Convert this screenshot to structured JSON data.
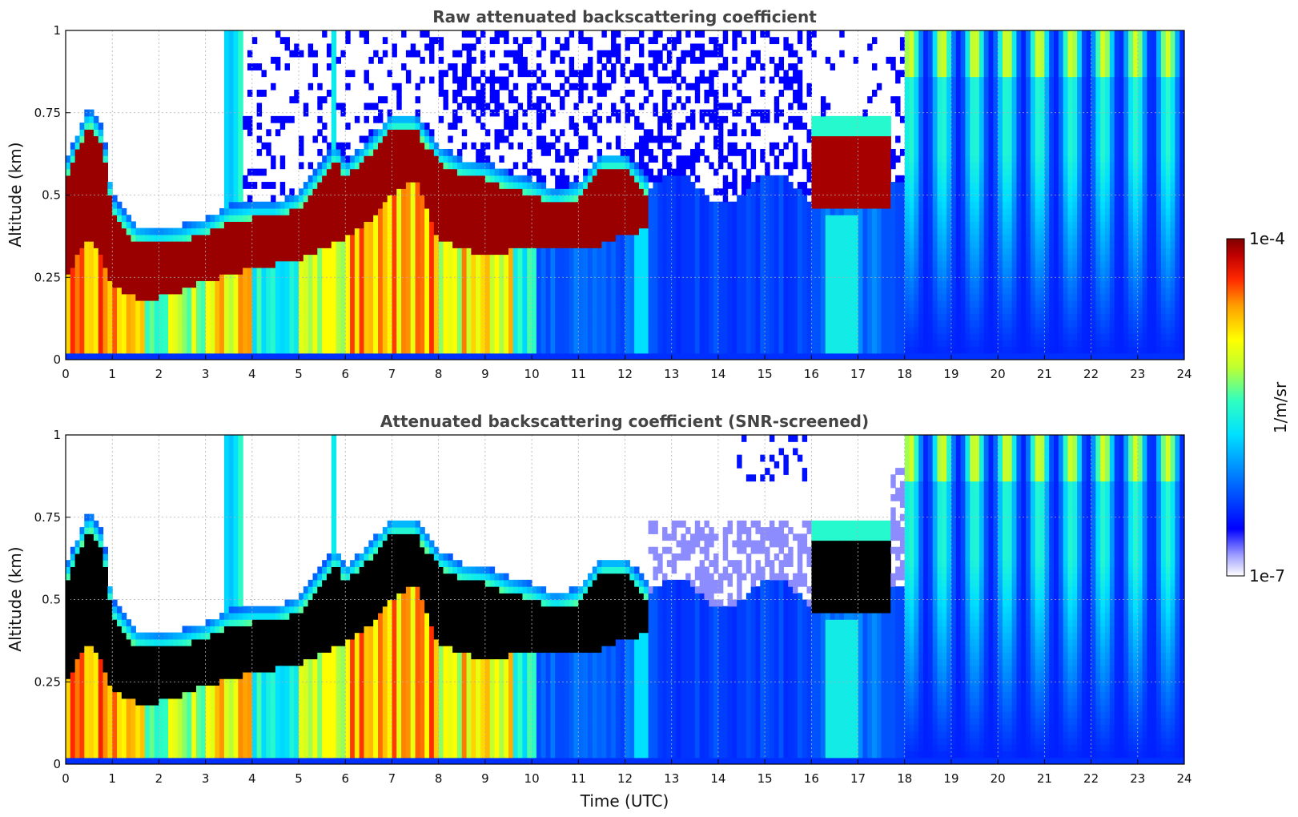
{
  "chart_data": [
    {
      "type": "heatmap",
      "title": "Raw attenuated backscattering coefficient",
      "xlabel": "",
      "ylabel": "Altitude (km)",
      "xlim": [
        0,
        24
      ],
      "ylim": [
        0,
        1
      ],
      "x_ticks": [
        "0",
        "1",
        "2",
        "3",
        "4",
        "5",
        "6",
        "7",
        "8",
        "9",
        "10",
        "11",
        "12",
        "13",
        "14",
        "15",
        "16",
        "17",
        "18",
        "19",
        "20",
        "21",
        "22",
        "23",
        "24"
      ],
      "y_ticks": [
        "0",
        "0.25",
        "0.5",
        "0.75",
        "1"
      ],
      "grid": true,
      "colormap": "jet",
      "layer_top_km": [
        [
          0.0,
          0.55
        ],
        [
          0.5,
          0.72
        ],
        [
          0.8,
          0.65
        ],
        [
          1.0,
          0.45
        ],
        [
          1.5,
          0.36
        ],
        [
          2.0,
          0.35
        ],
        [
          2.5,
          0.36
        ],
        [
          3.0,
          0.38
        ],
        [
          3.5,
          0.42
        ],
        [
          4.0,
          0.43
        ],
        [
          4.5,
          0.43
        ],
        [
          5.0,
          0.46
        ],
        [
          5.5,
          0.55
        ],
        [
          5.8,
          0.61
        ],
        [
          6.0,
          0.55
        ],
        [
          6.5,
          0.62
        ],
        [
          7.0,
          0.7
        ],
        [
          7.5,
          0.7
        ],
        [
          8.0,
          0.6
        ],
        [
          8.5,
          0.56
        ],
        [
          9.0,
          0.55
        ],
        [
          9.5,
          0.52
        ],
        [
          10.0,
          0.5
        ],
        [
          10.5,
          0.47
        ],
        [
          11.0,
          0.49
        ],
        [
          11.5,
          0.58
        ],
        [
          12.0,
          0.58
        ],
        [
          12.5,
          0.5
        ]
      ],
      "layer_bottom_km": [
        [
          0.0,
          0.25
        ],
        [
          0.5,
          0.38
        ],
        [
          0.8,
          0.3
        ],
        [
          1.0,
          0.22
        ],
        [
          1.5,
          0.19
        ],
        [
          2.0,
          0.19
        ],
        [
          2.5,
          0.21
        ],
        [
          3.0,
          0.24
        ],
        [
          3.5,
          0.26
        ],
        [
          4.0,
          0.28
        ],
        [
          4.5,
          0.29
        ],
        [
          5.0,
          0.3
        ],
        [
          5.5,
          0.34
        ],
        [
          6.0,
          0.37
        ],
        [
          6.5,
          0.42
        ],
        [
          7.0,
          0.5
        ],
        [
          7.5,
          0.55
        ],
        [
          8.0,
          0.37
        ],
        [
          8.5,
          0.34
        ],
        [
          9.0,
          0.31
        ],
        [
          9.5,
          0.33
        ],
        [
          10.0,
          0.35
        ],
        [
          10.5,
          0.33
        ],
        [
          11.0,
          0.34
        ],
        [
          11.5,
          0.35
        ],
        [
          12.0,
          0.38
        ],
        [
          12.5,
          0.4
        ]
      ],
      "second_layer": {
        "x_start": 16.0,
        "x_end": 17.7,
        "top_km": 0.68,
        "bottom_km": 0.47
      }
    },
    {
      "type": "heatmap",
      "title": "Attenuated backscattering coefficient (SNR-screened)",
      "xlabel": "Time (UTC)",
      "ylabel": "Altitude (km)",
      "xlim": [
        0,
        24
      ],
      "ylim": [
        0,
        1
      ],
      "x_ticks": [
        "0",
        "1",
        "2",
        "3",
        "4",
        "5",
        "6",
        "7",
        "8",
        "9",
        "10",
        "11",
        "12",
        "13",
        "14",
        "15",
        "16",
        "17",
        "18",
        "19",
        "20",
        "21",
        "22",
        "23",
        "24"
      ],
      "y_ticks": [
        "0",
        "0.25",
        "0.5",
        "0.75",
        "1"
      ],
      "grid": true,
      "colormap": "jet",
      "saturated_color": "#000000"
    }
  ],
  "colorbar": {
    "label": "1/m/sr",
    "max_label": "1e-4",
    "min_label": "1e-7",
    "vmin": 1e-07,
    "vmax": 0.0001,
    "scale": "log"
  }
}
